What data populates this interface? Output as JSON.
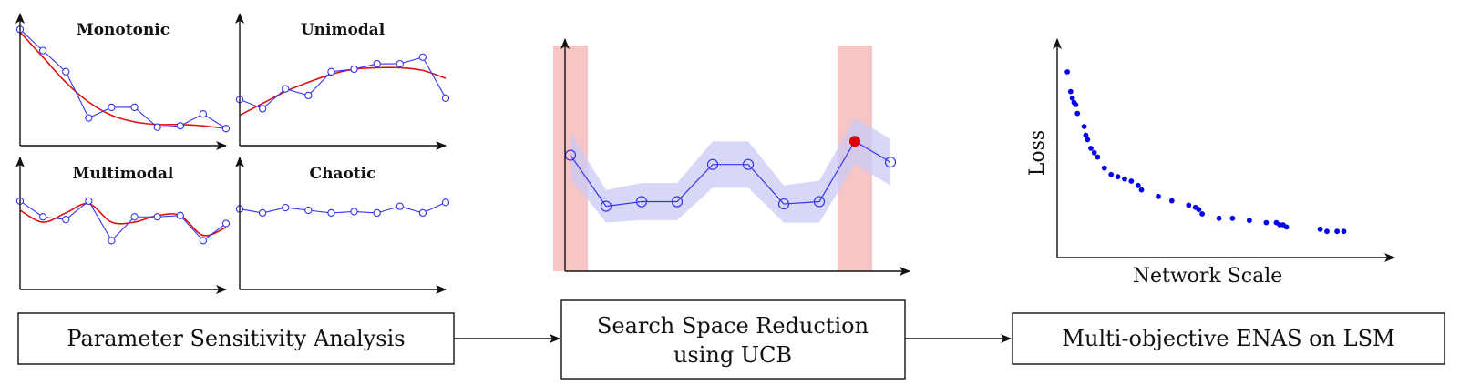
{
  "sensitivity_panels": [
    {
      "title": "Monotonic",
      "points": [
        0.88,
        0.72,
        0.56,
        0.21,
        0.29,
        0.29,
        0.14,
        0.15,
        0.24,
        0.13
      ],
      "trend": [
        0.86,
        0.67,
        0.48,
        0.33,
        0.23,
        0.18,
        0.16,
        0.16,
        0.15,
        0.13
      ]
    },
    {
      "title": "Unimodal",
      "points": [
        0.35,
        0.28,
        0.43,
        0.38,
        0.56,
        0.58,
        0.62,
        0.62,
        0.67,
        0.36
      ],
      "trend": [
        0.23,
        0.32,
        0.41,
        0.48,
        0.54,
        0.58,
        0.59,
        0.59,
        0.57,
        0.51
      ]
    },
    {
      "title": "Multimodal",
      "points": [
        0.67,
        0.55,
        0.53,
        0.67,
        0.37,
        0.55,
        0.55,
        0.56,
        0.37,
        0.5
      ],
      "trend": [
        0.6,
        0.51,
        0.58,
        0.65,
        0.51,
        0.51,
        0.56,
        0.56,
        0.41,
        0.47
      ]
    },
    {
      "title": "Chaotic",
      "points": [
        0.61,
        0.58,
        0.62,
        0.6,
        0.58,
        0.59,
        0.58,
        0.63,
        0.58,
        0.66
      ],
      "trend": []
    }
  ],
  "ucb_chart": {
    "values": [
      0.5,
      0.28,
      0.3,
      0.3,
      0.46,
      0.46,
      0.29,
      0.3,
      0.56,
      0.47
    ],
    "band_halfwidth": [
      0.1,
      0.07,
      0.08,
      0.08,
      0.1,
      0.1,
      0.08,
      0.09,
      0.1,
      0.1
    ],
    "highlight_index": 8,
    "shaded_indices": [
      0,
      8
    ]
  },
  "pareto_chart": {
    "xlabel": "Network Scale",
    "ylabel": "Loss",
    "points": [
      [
        0.03,
        0.85
      ],
      [
        0.04,
        0.76
      ],
      [
        0.045,
        0.73
      ],
      [
        0.05,
        0.71
      ],
      [
        0.055,
        0.7
      ],
      [
        0.06,
        0.66
      ],
      [
        0.08,
        0.6
      ],
      [
        0.085,
        0.56
      ],
      [
        0.09,
        0.54
      ],
      [
        0.1,
        0.5
      ],
      [
        0.11,
        0.48
      ],
      [
        0.12,
        0.46
      ],
      [
        0.14,
        0.41
      ],
      [
        0.16,
        0.38
      ],
      [
        0.18,
        0.37
      ],
      [
        0.2,
        0.36
      ],
      [
        0.22,
        0.35
      ],
      [
        0.24,
        0.33
      ],
      [
        0.25,
        0.31
      ],
      [
        0.3,
        0.28
      ],
      [
        0.34,
        0.26
      ],
      [
        0.39,
        0.24
      ],
      [
        0.41,
        0.23
      ],
      [
        0.42,
        0.22
      ],
      [
        0.43,
        0.2
      ],
      [
        0.48,
        0.18
      ],
      [
        0.52,
        0.18
      ],
      [
        0.57,
        0.17
      ],
      [
        0.62,
        0.16
      ],
      [
        0.65,
        0.16
      ],
      [
        0.66,
        0.15
      ],
      [
        0.67,
        0.15
      ],
      [
        0.68,
        0.14
      ],
      [
        0.78,
        0.13
      ],
      [
        0.8,
        0.12
      ],
      [
        0.83,
        0.12
      ],
      [
        0.85,
        0.12
      ]
    ]
  },
  "colors": {
    "series": "#3535ee",
    "trend": "#dd1111",
    "band": "#c9c9f6",
    "shade": "#f3aeae",
    "dot": "#0000ee",
    "highlight": "#dd0000"
  },
  "stages": [
    {
      "lines": [
        "Parameter Sensitivity Analysis"
      ]
    },
    {
      "lines": [
        "Search Space Reduction",
        "using UCB"
      ]
    },
    {
      "lines": [
        "Multi-objective ENAS on LSM"
      ]
    }
  ]
}
